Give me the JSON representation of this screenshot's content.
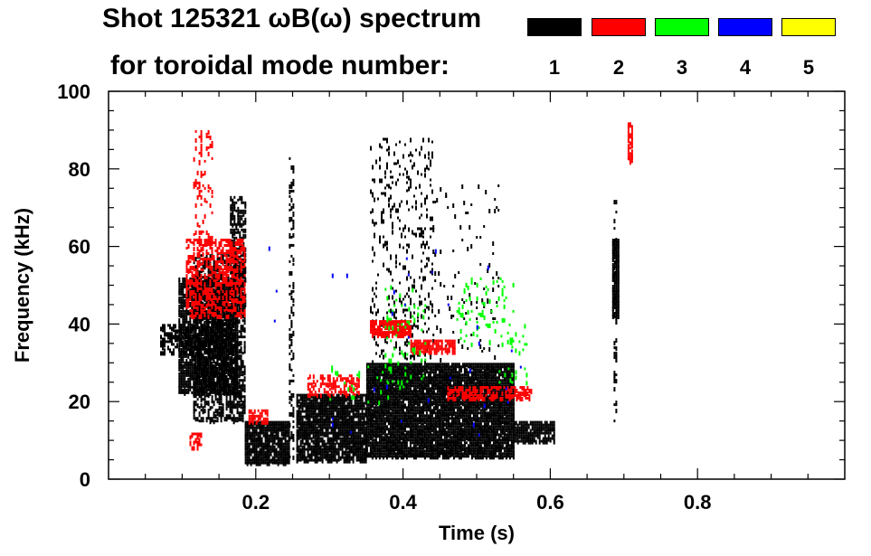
{
  "chart_data": {
    "type": "heatmap",
    "title_line1": "Shot 125321 ωB(ω) spectrum",
    "title_line2": "for toroidal mode number:",
    "xlabel": "Time (s)",
    "ylabel": "Frequency (kHz)",
    "xlim": [
      0.0,
      1.0
    ],
    "ylim": [
      0,
      100
    ],
    "xticks": [
      0.2,
      0.4,
      0.6,
      0.8
    ],
    "xtick_labels": [
      "0.2",
      "0.4",
      "0.6",
      "0.8"
    ],
    "yticks": [
      0,
      20,
      40,
      60,
      80,
      100
    ],
    "ytick_labels": [
      "0",
      "20",
      "40",
      "60",
      "80",
      "100"
    ],
    "legend": [
      {
        "label": "1",
        "color": "#000000"
      },
      {
        "label": "2",
        "color": "#ff0000"
      },
      {
        "label": "3",
        "color": "#00ff00"
      },
      {
        "label": "4",
        "color": "#0000ff"
      },
      {
        "label": "5",
        "color": "#ffff00"
      }
    ],
    "regions": [
      {
        "mode": 1,
        "t": [
          0.07,
          0.115
        ],
        "f": [
          33,
          40
        ],
        "density": 0.55
      },
      {
        "mode": 1,
        "t": [
          0.095,
          0.175
        ],
        "f": [
          22,
          52
        ],
        "density": 0.85
      },
      {
        "mode": 1,
        "t": [
          0.115,
          0.185
        ],
        "f": [
          15,
          58
        ],
        "density": 0.6
      },
      {
        "mode": 1,
        "t": [
          0.165,
          0.185
        ],
        "f": [
          45,
          73
        ],
        "density": 0.6
      },
      {
        "mode": 1,
        "t": [
          0.185,
          0.245
        ],
        "f": [
          4,
          15
        ],
        "density": 0.9
      },
      {
        "mode": 1,
        "t": [
          0.245,
          0.252
        ],
        "f": [
          5,
          83
        ],
        "density": 0.35
      },
      {
        "mode": 1,
        "t": [
          0.255,
          0.35
        ],
        "f": [
          5,
          22
        ],
        "density": 0.9
      },
      {
        "mode": 1,
        "t": [
          0.35,
          0.55
        ],
        "f": [
          6,
          30
        ],
        "density": 0.95
      },
      {
        "mode": 1,
        "t": [
          0.55,
          0.605
        ],
        "f": [
          10,
          15
        ],
        "density": 0.85
      },
      {
        "mode": 1,
        "t": [
          0.355,
          0.44
        ],
        "f": [
          30,
          88
        ],
        "density": 0.12
      },
      {
        "mode": 1,
        "t": [
          0.44,
          0.53
        ],
        "f": [
          30,
          76
        ],
        "density": 0.04
      },
      {
        "mode": 1,
        "t": [
          0.684,
          0.692
        ],
        "f": [
          42,
          62
        ],
        "density": 0.95
      },
      {
        "mode": 1,
        "t": [
          0.686,
          0.69
        ],
        "f": [
          15,
          72
        ],
        "density": 0.35
      },
      {
        "mode": 2,
        "t": [
          0.105,
          0.185
        ],
        "f": [
          42,
          62
        ],
        "density": 0.5
      },
      {
        "mode": 2,
        "t": [
          0.115,
          0.14
        ],
        "f": [
          60,
          90
        ],
        "density": 0.18
      },
      {
        "mode": 2,
        "t": [
          0.19,
          0.215
        ],
        "f": [
          15,
          18
        ],
        "density": 0.75
      },
      {
        "mode": 2,
        "t": [
          0.27,
          0.34
        ],
        "f": [
          22,
          27
        ],
        "density": 0.5
      },
      {
        "mode": 2,
        "t": [
          0.355,
          0.41
        ],
        "f": [
          37,
          41
        ],
        "density": 0.85
      },
      {
        "mode": 2,
        "t": [
          0.41,
          0.47
        ],
        "f": [
          33,
          36
        ],
        "density": 0.85
      },
      {
        "mode": 2,
        "t": [
          0.46,
          0.575
        ],
        "f": [
          21,
          24
        ],
        "density": 0.6
      },
      {
        "mode": 2,
        "t": [
          0.705,
          0.71
        ],
        "f": [
          82,
          92
        ],
        "density": 0.8
      },
      {
        "mode": 2,
        "t": [
          0.11,
          0.125
        ],
        "f": [
          8,
          12
        ],
        "density": 0.6
      },
      {
        "mode": 3,
        "t": [
          0.375,
          0.43
        ],
        "f": [
          24,
          50
        ],
        "density": 0.1
      },
      {
        "mode": 3,
        "t": [
          0.47,
          0.55
        ],
        "f": [
          35,
          52
        ],
        "density": 0.1
      },
      {
        "mode": 3,
        "t": [
          0.53,
          0.57
        ],
        "f": [
          25,
          40
        ],
        "density": 0.08
      },
      {
        "mode": 3,
        "t": [
          0.3,
          0.38
        ],
        "f": [
          20,
          30
        ],
        "density": 0.05
      },
      {
        "mode": 4,
        "t": [
          0.2,
          0.56
        ],
        "f": [
          10,
          60
        ],
        "density": 0.003
      },
      {
        "mode": 5,
        "t": [
          0.12,
          0.16
        ],
        "f": [
          20,
          80
        ],
        "density": 0.0
      }
    ]
  }
}
